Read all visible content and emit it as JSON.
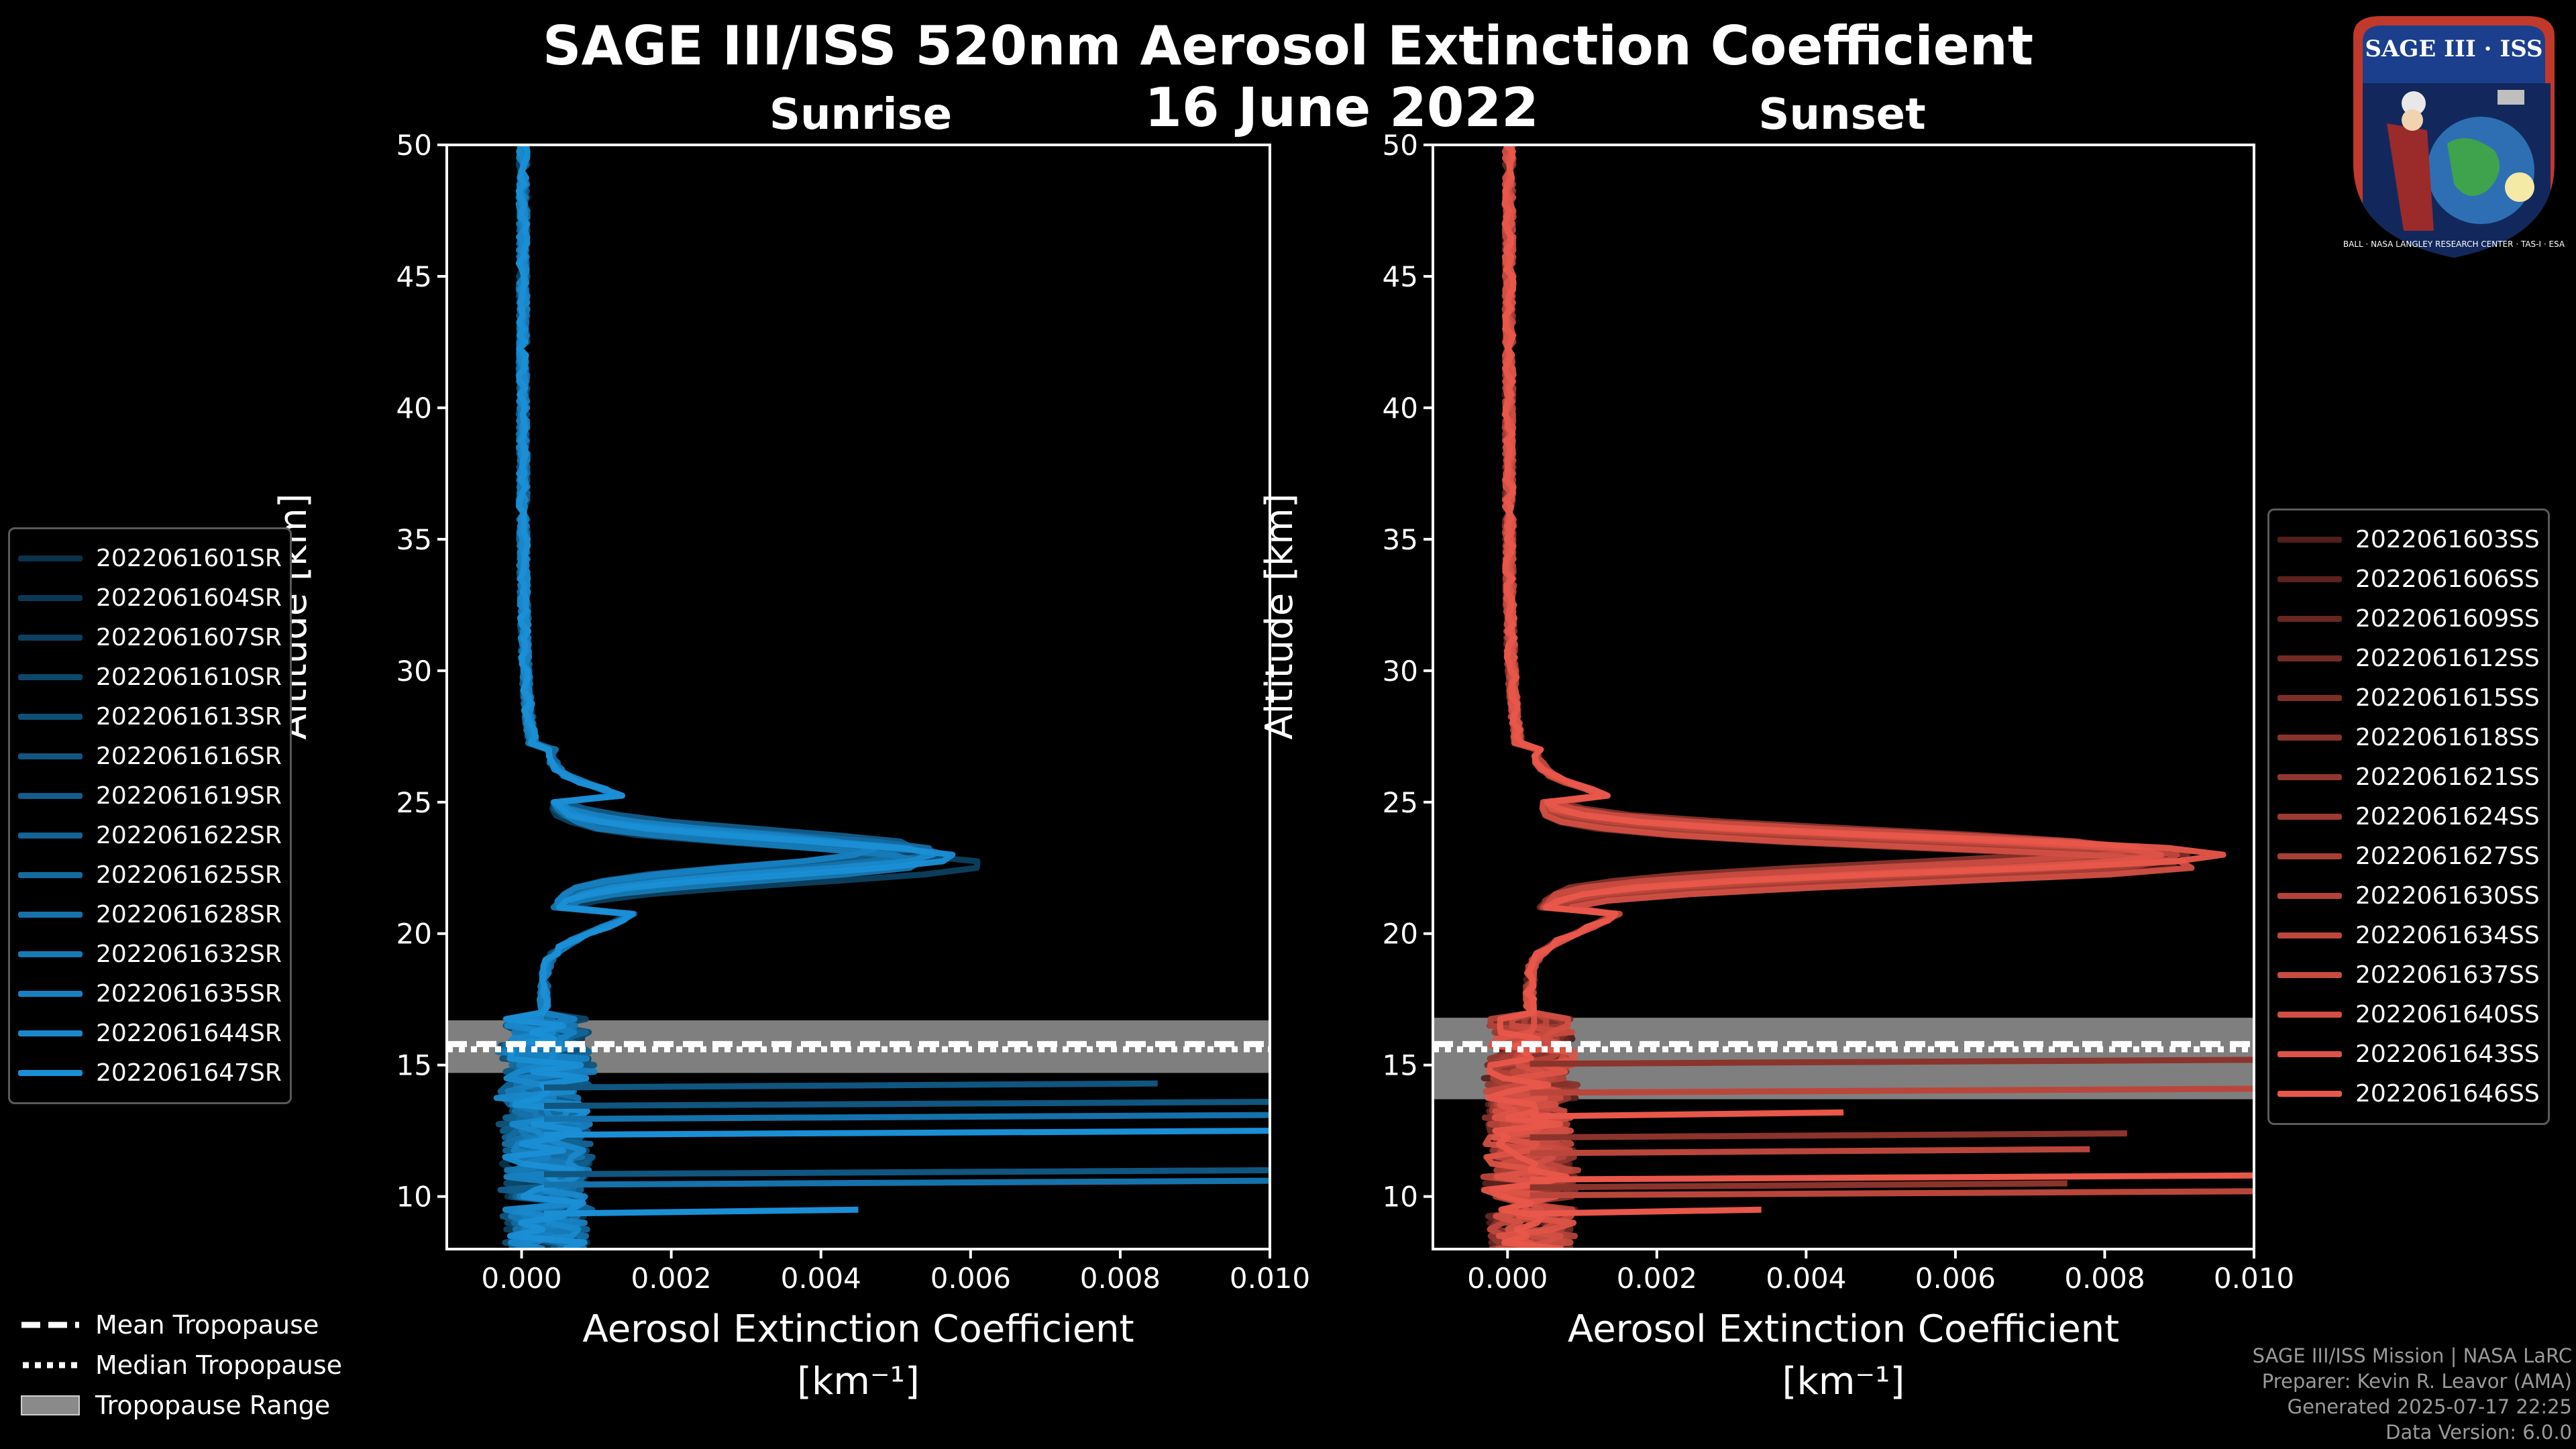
{
  "header": {
    "title": "SAGE III/ISS 520nm Aerosol Extinction Coefficient",
    "subtitle": "16 June 2022"
  },
  "logo": {
    "text": "SAGE III · ISS",
    "ring_text": "BALL · NASA LANGLEY RESEARCH CENTER · TAS-I · ESA"
  },
  "colors": {
    "sunrise": "#1a8fd6",
    "sunset": "#e8574a",
    "background": "#000000",
    "tropopause_band": "#8a8a8a"
  },
  "chart_data": [
    {
      "type": "line",
      "title": "Sunrise",
      "xlabel": "Aerosol Extinction Coefficient",
      "xunit": "[km⁻¹]",
      "ylabel": "Altitude [km]",
      "xlim": [
        -0.001,
        0.01
      ],
      "ylim": [
        8,
        50
      ],
      "xticks": [
        "0.000",
        "0.002",
        "0.004",
        "0.006",
        "0.008",
        "0.010"
      ],
      "yticks": [
        "10",
        "15",
        "20",
        "25",
        "30",
        "35",
        "40",
        "45",
        "50"
      ],
      "tropopause": {
        "mean": 15.8,
        "median": 15.6,
        "range": [
          14.7,
          16.7
        ]
      },
      "series": [
        {
          "name": "2022061601SR",
          "peak_value": 0.0052,
          "peak_alt": 23.0
        },
        {
          "name": "2022061604SR",
          "peak_value": 0.0055,
          "peak_alt": 23.1
        },
        {
          "name": "2022061607SR",
          "peak_value": 0.0062,
          "peak_alt": 22.6
        },
        {
          "name": "2022061610SR",
          "peak_value": 0.0049,
          "peak_alt": 23.2
        },
        {
          "name": "2022061613SR",
          "peak_value": 0.0057,
          "peak_alt": 23.0
        },
        {
          "name": "2022061616SR",
          "peak_value": 0.0051,
          "peak_alt": 22.8
        },
        {
          "name": "2022061619SR",
          "peak_value": 0.0053,
          "peak_alt": 23.3
        },
        {
          "name": "2022061622SR",
          "peak_value": 0.0048,
          "peak_alt": 22.9
        },
        {
          "name": "2022061625SR",
          "peak_value": 0.0056,
          "peak_alt": 23.1
        },
        {
          "name": "2022061628SR",
          "peak_value": 0.005,
          "peak_alt": 23.0
        },
        {
          "name": "2022061632SR",
          "peak_value": 0.0054,
          "peak_alt": 22.7
        },
        {
          "name": "2022061635SR",
          "peak_value": 0.0047,
          "peak_alt": 23.2
        },
        {
          "name": "2022061644SR",
          "peak_value": 0.0055,
          "peak_alt": 23.0
        },
        {
          "name": "2022061647SR",
          "peak_value": 0.0058,
          "peak_alt": 22.9
        }
      ]
    },
    {
      "type": "line",
      "title": "Sunset",
      "xlabel": "Aerosol Extinction Coefficient",
      "xunit": "[km⁻¹]",
      "ylabel": "Altitude [km]",
      "xlim": [
        -0.001,
        0.01
      ],
      "ylim": [
        8,
        50
      ],
      "xticks": [
        "0.000",
        "0.002",
        "0.004",
        "0.006",
        "0.008",
        "0.010"
      ],
      "yticks": [
        "10",
        "15",
        "20",
        "25",
        "30",
        "35",
        "40",
        "45",
        "50"
      ],
      "tropopause": {
        "mean": 15.8,
        "median": 15.6,
        "range": [
          13.7,
          16.8
        ]
      },
      "series": [
        {
          "name": "2022061603SS",
          "peak_value": 0.0082,
          "peak_alt": 23.0
        },
        {
          "name": "2022061606SS",
          "peak_value": 0.009,
          "peak_alt": 22.6
        },
        {
          "name": "2022061609SS",
          "peak_value": 0.0085,
          "peak_alt": 23.2
        },
        {
          "name": "2022061612SS",
          "peak_value": 0.0078,
          "peak_alt": 23.0
        },
        {
          "name": "2022061615SS",
          "peak_value": 0.0092,
          "peak_alt": 22.9
        },
        {
          "name": "2022061618SS",
          "peak_value": 0.008,
          "peak_alt": 23.3
        },
        {
          "name": "2022061621SS",
          "peak_value": 0.0087,
          "peak_alt": 22.7
        },
        {
          "name": "2022061624SS",
          "peak_value": 0.0083,
          "peak_alt": 23.1
        },
        {
          "name": "2022061627SS",
          "peak_value": 0.0089,
          "peak_alt": 22.8
        },
        {
          "name": "2022061630SS",
          "peak_value": 0.0086,
          "peak_alt": 23.0
        },
        {
          "name": "2022061634SS",
          "peak_value": 0.0091,
          "peak_alt": 22.9
        },
        {
          "name": "2022061637SS",
          "peak_value": 0.0084,
          "peak_alt": 23.2
        },
        {
          "name": "2022061640SS",
          "peak_value": 0.0093,
          "peak_alt": 22.6
        },
        {
          "name": "2022061643SS",
          "peak_value": 0.0088,
          "peak_alt": 23.0
        },
        {
          "name": "2022061646SS",
          "peak_value": 0.0096,
          "peak_alt": 23.0
        }
      ]
    }
  ],
  "tropopause_legend": {
    "mean": "Mean Tropopause",
    "median": "Median Tropopause",
    "range": "Tropopause Range"
  },
  "credits": {
    "line1": "SAGE III/ISS Mission | NASA LaRC",
    "line2": "Preparer: Kevin R. Leavor (AMA)",
    "line3": "Generated 2025-07-17 22:25",
    "line4": "Data Version: 6.0.0"
  }
}
